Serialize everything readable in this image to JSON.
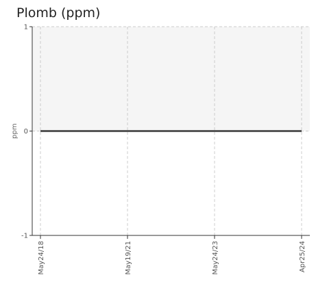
{
  "chart_data": {
    "type": "line",
    "title": "Plomb (ppm)",
    "xlabel": "",
    "ylabel": "ppm",
    "categories": [
      "May24/18",
      "May19/21",
      "May24/23",
      "Apr25/24"
    ],
    "series": [
      {
        "values": [
          0,
          0,
          0,
          0
        ]
      }
    ],
    "ylim": [
      -1,
      1
    ],
    "yticks": [
      "-1",
      "0",
      "1"
    ],
    "grid": true,
    "legend": "none",
    "colors": {
      "line": "#555555",
      "positive_band": "#f5f5f5",
      "grid": "#cccccc",
      "axis": "#333333"
    }
  }
}
